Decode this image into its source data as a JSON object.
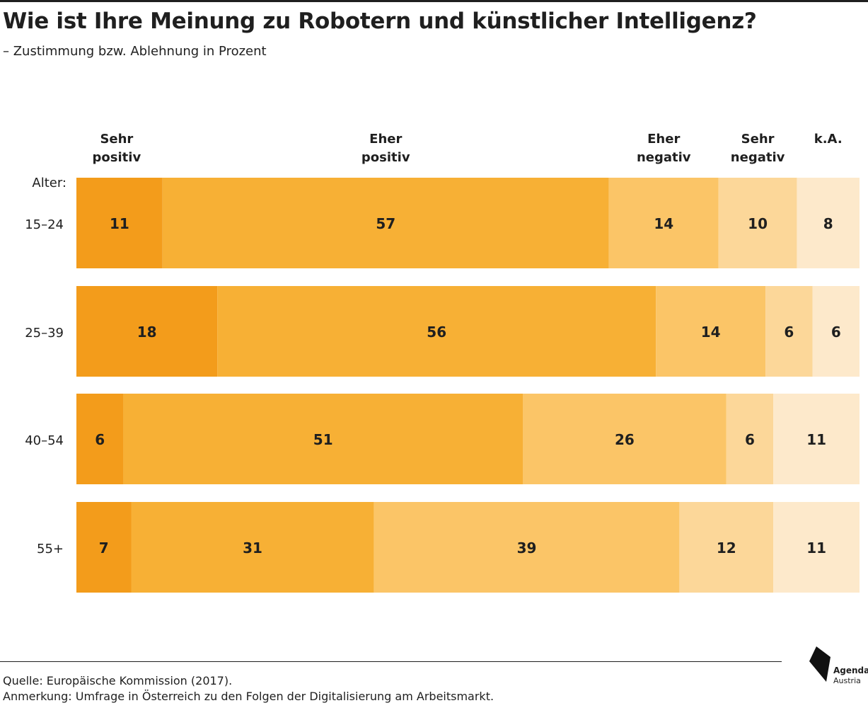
{
  "header": {
    "title": "Wie ist Ihre Meinung zu Robotern und künstlicher Intelligenz?",
    "subtitle": "– Zustimmung bzw. Ablehnung in Prozent"
  },
  "chart_data": {
    "type": "bar",
    "orientation": "horizontal",
    "stacked": true,
    "row_axis_title": "Alter:",
    "categories": [
      "15–24",
      "25–39",
      "40–54",
      "55+"
    ],
    "series": [
      {
        "name": "Sehr positiv",
        "values": [
          11,
          18,
          6,
          7
        ],
        "color": "#f39c1b"
      },
      {
        "name": "Eher positiv",
        "values": [
          57,
          56,
          51,
          31
        ],
        "color": "#f7b035"
      },
      {
        "name": "Eher negativ",
        "values": [
          14,
          14,
          26,
          39
        ],
        "color": "#fbc567"
      },
      {
        "name": "Sehr negativ",
        "values": [
          10,
          6,
          6,
          12
        ],
        "color": "#fcd799"
      },
      {
        "name": "k.A.",
        "values": [
          8,
          6,
          11,
          11
        ],
        "color": "#fde9cb"
      }
    ],
    "data_labels": true,
    "grid": false,
    "legend_position": "top"
  },
  "footer": {
    "source": "Quelle: Europäische Kommission (2017).",
    "note": "Anmerkung: Umfrage in Österreich zu den Folgen der Digitalisierung am Arbeitsmarkt."
  },
  "logo": {
    "line1": "Agenda",
    "line2": "Austria"
  }
}
